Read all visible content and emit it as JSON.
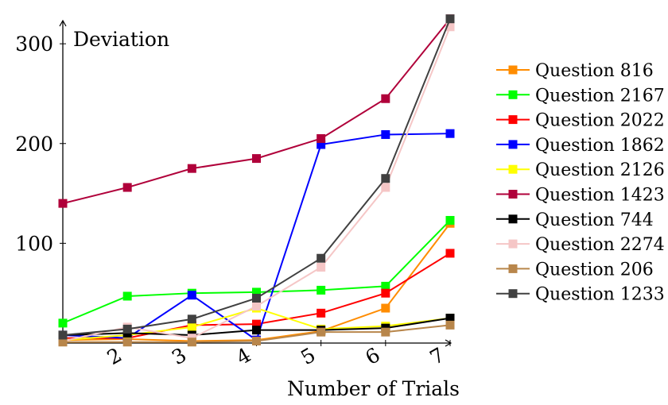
{
  "chart_data": {
    "type": "line",
    "title": "",
    "xlabel": "Number of Trials",
    "ylabel": "Deviation",
    "x": [
      1,
      2,
      3,
      4,
      5,
      6,
      7
    ],
    "xticks": [
      "2",
      "3",
      "4",
      "5",
      "6",
      "7"
    ],
    "yticks": [
      "100",
      "200",
      "300"
    ],
    "xlim": [
      1,
      7
    ],
    "ylim": [
      0,
      320
    ],
    "grid": false,
    "legend_position": "right",
    "series": [
      {
        "name": "Question 816",
        "color": "#ff8c00",
        "values": [
          3,
          4,
          2,
          3,
          12,
          35,
          120
        ]
      },
      {
        "name": "Question 2167",
        "color": "#00ff00",
        "values": [
          20,
          47,
          50,
          51,
          53,
          57,
          123
        ]
      },
      {
        "name": "Question 2022",
        "color": "#ff0000",
        "values": [
          5,
          5,
          18,
          19,
          30,
          50,
          90
        ]
      },
      {
        "name": "Question 1862",
        "color": "#0000ff",
        "values": [
          8,
          5,
          48,
          3,
          199,
          209,
          210
        ]
      },
      {
        "name": "Question 2126",
        "color": "#ffff00",
        "values": [
          3,
          8,
          16,
          35,
          14,
          17,
          25
        ]
      },
      {
        "name": "Question 1423",
        "color": "#b0003a",
        "values": [
          140,
          156,
          175,
          185,
          205,
          245,
          325
        ]
      },
      {
        "name": "Question 744",
        "color": "#000000",
        "values": [
          8,
          10,
          8,
          13,
          13,
          15,
          25
        ]
      },
      {
        "name": "Question 2274",
        "color": "#f5c6c6",
        "values": [
          2,
          16,
          5,
          37,
          76,
          156,
          317
        ]
      },
      {
        "name": "Question 206",
        "color": "#b8864b",
        "values": [
          1,
          1,
          1,
          2,
          11,
          11,
          18
        ]
      },
      {
        "name": "Question 1233",
        "color": "#404040",
        "values": [
          8,
          14,
          24,
          45,
          85,
          165,
          325
        ]
      }
    ]
  }
}
